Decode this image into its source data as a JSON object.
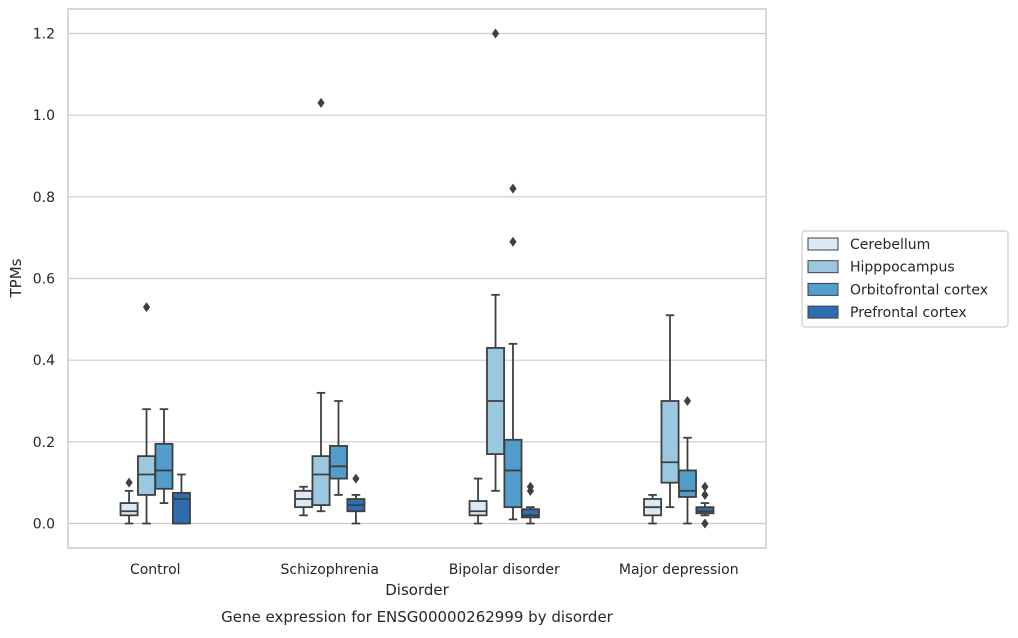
{
  "chart_data": {
    "type": "box",
    "title": "",
    "caption": "Gene expression for ENSG00000262999 by disorder",
    "xlabel": "Disorder",
    "ylabel": "TPMs",
    "ylim": [
      -0.06,
      1.26
    ],
    "yticks": [
      0.0,
      0.2,
      0.4,
      0.6,
      0.8,
      1.0,
      1.2
    ],
    "ytick_labels": [
      "0.0",
      "0.2",
      "0.4",
      "0.6",
      "0.8",
      "1.0",
      "1.2"
    ],
    "grid": true,
    "legend_position": "right",
    "categories": [
      "Control",
      "Schizophrenia",
      "Bipolar disorder",
      "Major depression"
    ],
    "series": [
      {
        "name": "Cerebellum",
        "color": "#dbe9f6",
        "boxes": [
          {
            "q1": 0.02,
            "median": 0.03,
            "q3": 0.05,
            "whisker_low": 0.0,
            "whisker_high": 0.08,
            "outliers": [
              0.1
            ]
          },
          {
            "q1": 0.04,
            "median": 0.06,
            "q3": 0.08,
            "whisker_low": 0.02,
            "whisker_high": 0.09,
            "outliers": []
          },
          {
            "q1": 0.02,
            "median": 0.03,
            "q3": 0.055,
            "whisker_low": 0.0,
            "whisker_high": 0.11,
            "outliers": []
          },
          {
            "q1": 0.02,
            "median": 0.04,
            "q3": 0.06,
            "whisker_low": 0.0,
            "whisker_high": 0.07,
            "outliers": []
          }
        ]
      },
      {
        "name": "Hipppocampus",
        "color": "#9ac8e0",
        "boxes": [
          {
            "q1": 0.07,
            "median": 0.12,
            "q3": 0.165,
            "whisker_low": 0.0,
            "whisker_high": 0.28,
            "outliers": [
              0.53
            ]
          },
          {
            "q1": 0.045,
            "median": 0.12,
            "q3": 0.165,
            "whisker_low": 0.03,
            "whisker_high": 0.32,
            "outliers": [
              1.03
            ]
          },
          {
            "q1": 0.17,
            "median": 0.3,
            "q3": 0.43,
            "whisker_low": 0.08,
            "whisker_high": 0.56,
            "outliers": [
              1.2
            ]
          },
          {
            "q1": 0.1,
            "median": 0.15,
            "q3": 0.3,
            "whisker_low": 0.04,
            "whisker_high": 0.51,
            "outliers": []
          }
        ]
      },
      {
        "name": "Orbitofrontal cortex",
        "color": "#529dcc",
        "boxes": [
          {
            "q1": 0.085,
            "median": 0.13,
            "q3": 0.195,
            "whisker_low": 0.05,
            "whisker_high": 0.28,
            "outliers": []
          },
          {
            "q1": 0.11,
            "median": 0.14,
            "q3": 0.19,
            "whisker_low": 0.07,
            "whisker_high": 0.3,
            "outliers": []
          },
          {
            "q1": 0.04,
            "median": 0.13,
            "q3": 0.205,
            "whisker_low": 0.01,
            "whisker_high": 0.44,
            "outliers": [
              0.82,
              0.69
            ]
          },
          {
            "q1": 0.065,
            "median": 0.08,
            "q3": 0.13,
            "whisker_low": 0.0,
            "whisker_high": 0.21,
            "outliers": [
              0.3
            ]
          }
        ]
      },
      {
        "name": "Prefrontal cortex",
        "color": "#2e6daf",
        "boxes": [
          {
            "q1": 0.0,
            "median": 0.06,
            "q3": 0.075,
            "whisker_low": 0.0,
            "whisker_high": 0.12,
            "outliers": []
          },
          {
            "q1": 0.03,
            "median": 0.045,
            "q3": 0.06,
            "whisker_low": 0.0,
            "whisker_high": 0.07,
            "outliers": [
              0.11
            ]
          },
          {
            "q1": 0.015,
            "median": 0.02,
            "q3": 0.035,
            "whisker_low": 0.0,
            "whisker_high": 0.04,
            "outliers": [
              0.09,
              0.08
            ]
          },
          {
            "q1": 0.025,
            "median": 0.03,
            "q3": 0.04,
            "whisker_low": 0.02,
            "whisker_high": 0.05,
            "outliers": [
              0.09,
              0.07,
              0.0
            ]
          }
        ]
      }
    ]
  }
}
